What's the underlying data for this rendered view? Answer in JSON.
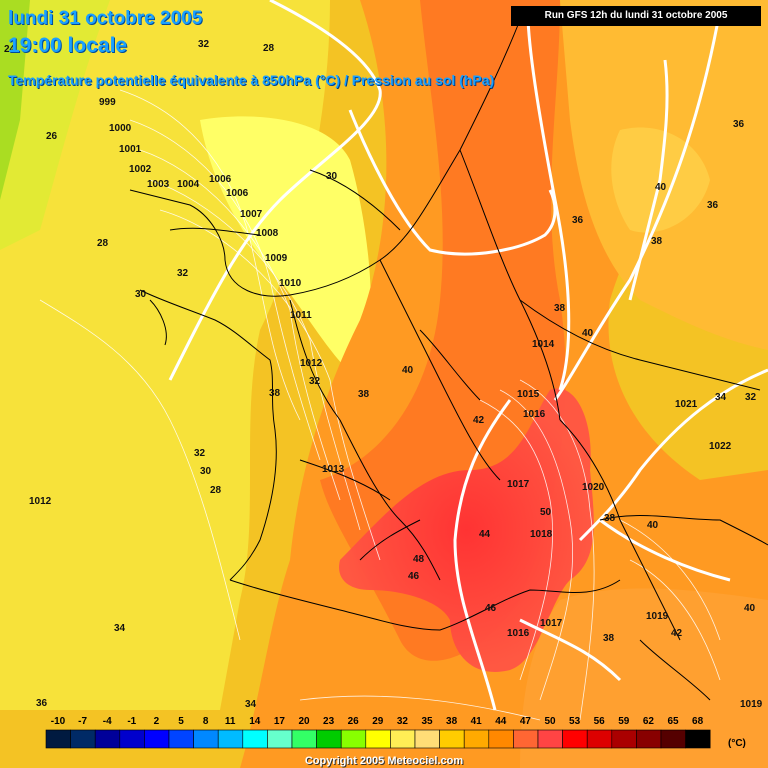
{
  "header": {
    "date_title": "lundi 31 octobre 2005",
    "time_title": "19:00 locale",
    "subtitle": "Température potentielle équivalente à 850hPa (°C) / Pression au sol (hPa)",
    "run_info": "Run GFS 12h du lundi 31 octobre 2005"
  },
  "legend": {
    "ticks": [
      "-10",
      "-7",
      "-4",
      "-1",
      "2",
      "5",
      "8",
      "11",
      "14",
      "17",
      "20",
      "23",
      "26",
      "29",
      "32",
      "35",
      "38",
      "41",
      "44",
      "47",
      "50",
      "53",
      "56",
      "59",
      "62",
      "65",
      "68"
    ],
    "colors": [
      "#001a40",
      "#002a66",
      "#000099",
      "#0000cc",
      "#0000ff",
      "#0044ff",
      "#0088ff",
      "#00bbff",
      "#00ffff",
      "#66ffcc",
      "#33ff66",
      "#00cc00",
      "#88ff00",
      "#ffff00",
      "#ffee55",
      "#ffdd77",
      "#ffcc00",
      "#ffaa00",
      "#ff8800",
      "#ff6633",
      "#ff4444",
      "#ff0000",
      "#dd0000",
      "#aa0000",
      "#880000",
      "#550000",
      "#000000"
    ],
    "unit": "(°C)"
  },
  "map_labels": {
    "pressure": [
      "999",
      "1000",
      "1001",
      "1002",
      "1003",
      "1004",
      "1006",
      "1006",
      "1007",
      "1008",
      "1009",
      "1010",
      "1011",
      "1012",
      "1013",
      "1012",
      "1014",
      "1015",
      "1016",
      "1017",
      "1018",
      "1016",
      "1017",
      "1019",
      "1020",
      "1021",
      "1022",
      "1019"
    ],
    "temperature": [
      "24",
      "32",
      "28",
      "26",
      "28",
      "32",
      "30",
      "30",
      "36",
      "36",
      "40",
      "38",
      "38",
      "40",
      "36",
      "34",
      "32",
      "40",
      "38",
      "42",
      "44",
      "48",
      "46",
      "46",
      "50",
      "40",
      "38",
      "40",
      "42",
      "38",
      "32",
      "30",
      "28",
      "34",
      "36",
      "34",
      "32",
      "38"
    ]
  },
  "copyright": "Copyright 2005 Meteociel.com"
}
